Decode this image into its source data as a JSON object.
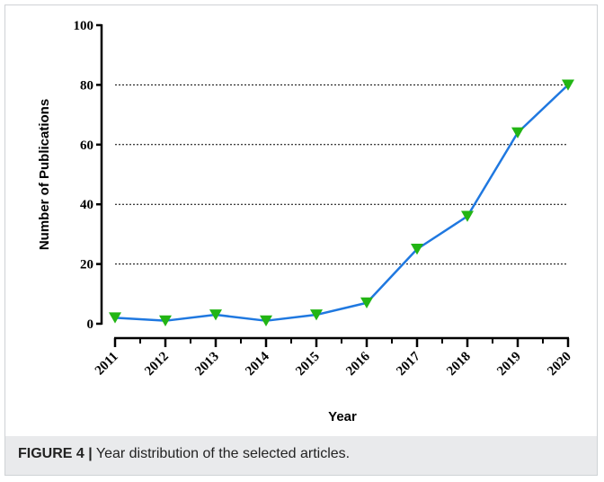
{
  "chart_data": {
    "type": "line",
    "title": "",
    "xlabel": "Year",
    "ylabel": "Number of Publications",
    "x": [
      "2011",
      "2012",
      "2013",
      "2014",
      "2015",
      "2016",
      "2017",
      "2018",
      "2019",
      "2020"
    ],
    "y": [
      2,
      1,
      3,
      1,
      3,
      7,
      25,
      36,
      64,
      80
    ],
    "ylim": [
      0,
      100
    ],
    "yticks": [
      0,
      20,
      40,
      60,
      80,
      100
    ],
    "grid": "horizontal-dotted",
    "line_color": "#1f78e0",
    "marker": "down-triangle",
    "marker_color": "#22b514"
  },
  "caption": {
    "label": "FIGURE 4 |",
    "text": " Year distribution of the selected articles."
  }
}
